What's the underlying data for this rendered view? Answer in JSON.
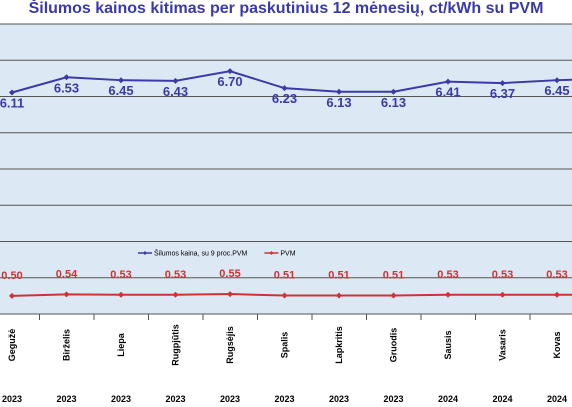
{
  "chart_data": {
    "type": "line",
    "title": "Šilumos kainos kitimas per paskutinius 12 mėnesių, ct/kWh su PVM",
    "categories": [
      {
        "month": "Gegužė",
        "year": "2023"
      },
      {
        "month": "Birželis",
        "year": "2023"
      },
      {
        "month": "Liepa",
        "year": "2023"
      },
      {
        "month": "Rugpjūtis",
        "year": "2023"
      },
      {
        "month": "Rugsėjis",
        "year": "2023"
      },
      {
        "month": "Spalis",
        "year": "2023"
      },
      {
        "month": "Lapkritis",
        "year": "2023"
      },
      {
        "month": "Gruodis",
        "year": "2023"
      },
      {
        "month": "Sausis",
        "year": "2024"
      },
      {
        "month": "Vasaris",
        "year": "2024"
      },
      {
        "month": "Kovas",
        "year": "2024"
      },
      {
        "month": "",
        "year": ""
      }
    ],
    "series": [
      {
        "name": "Šilumos kaina, su 9 proc.PVM",
        "color": "#3a3aa8",
        "values": [
          6.11,
          6.53,
          6.45,
          6.43,
          6.7,
          6.23,
          6.13,
          6.13,
          6.41,
          6.37,
          6.45,
          6.5
        ],
        "labels": [
          "6.11",
          "6.53",
          "6.45",
          "6.43",
          "6.70",
          "6.23",
          "6.13",
          "6.13",
          "6.41",
          "6.37",
          "6.45",
          ""
        ]
      },
      {
        "name": "PVM",
        "color": "#cc3333",
        "values": [
          0.5,
          0.54,
          0.53,
          0.53,
          0.55,
          0.51,
          0.51,
          0.51,
          0.53,
          0.53,
          0.53,
          0.53
        ],
        "labels": [
          "0.50",
          "0.54",
          "0.53",
          "0.53",
          "0.55",
          "0.51",
          "0.51",
          "0.51",
          "0.53",
          "0.53",
          "0.53",
          ""
        ]
      }
    ],
    "xlabel": "",
    "ylabel": "",
    "ylim": [
      0,
      8
    ],
    "grid": true,
    "legend_position": "middle-center",
    "plot_background": "#dde8f5"
  }
}
